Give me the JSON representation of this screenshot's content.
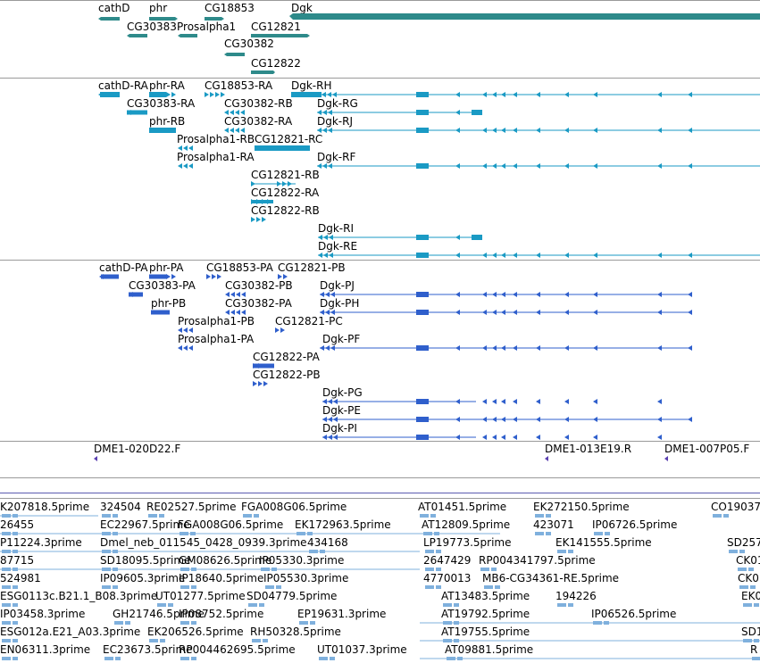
{
  "colors": {
    "gene": "#2e8a8a",
    "transcript": "#1a9ac4",
    "protein": "#2f5fcc",
    "clone": "#5a3fb0",
    "est": "#7fb0dd"
  },
  "tracks": {
    "genes": [
      {
        "id": "cathD",
        "label": "cathD"
      },
      {
        "id": "phr",
        "label": "phr"
      },
      {
        "id": "CG18853",
        "label": "CG18853"
      },
      {
        "id": "Dgk",
        "label": "Dgk"
      },
      {
        "id": "CG30383",
        "label": "CG30383"
      },
      {
        "id": "Prosalpha1",
        "label": "Prosalpha1"
      },
      {
        "id": "CG12821",
        "label": "CG12821"
      },
      {
        "id": "CG30382",
        "label": "CG30382"
      },
      {
        "id": "CG12822",
        "label": "CG12822"
      }
    ],
    "transcripts": [
      {
        "label": "cathD-RA"
      },
      {
        "label": "phr-RA"
      },
      {
        "label": "CG18853-RA"
      },
      {
        "label": "Dgk-RH"
      },
      {
        "label": "CG30383-RA"
      },
      {
        "label": "CG30382-RB"
      },
      {
        "label": "Dgk-RG"
      },
      {
        "label": "phr-RB"
      },
      {
        "label": "CG30382-RA"
      },
      {
        "label": "Dgk-RJ"
      },
      {
        "label": "Prosalpha1-RB"
      },
      {
        "label": "CG12821-RC"
      },
      {
        "label": "Prosalpha1-RA"
      },
      {
        "label": "Dgk-RF"
      },
      {
        "label": "CG12821-RB"
      },
      {
        "label": "CG12822-RA"
      },
      {
        "label": "CG12822-RB"
      },
      {
        "label": "Dgk-RI"
      },
      {
        "label": "Dgk-RE"
      }
    ],
    "proteins": [
      {
        "label": "cathD-PA"
      },
      {
        "label": "phr-PA"
      },
      {
        "label": "CG18853-PA"
      },
      {
        "label": "CG12821-PB"
      },
      {
        "label": "CG30383-PA"
      },
      {
        "label": "CG30382-PB"
      },
      {
        "label": "Dgk-PJ"
      },
      {
        "label": "phr-PB"
      },
      {
        "label": "CG30382-PA"
      },
      {
        "label": "Dgk-PH"
      },
      {
        "label": "Prosalpha1-PB"
      },
      {
        "label": "CG12821-PC"
      },
      {
        "label": "Prosalpha1-PA"
      },
      {
        "label": "Dgk-PF"
      },
      {
        "label": "CG12822-PA"
      },
      {
        "label": "CG12822-PB"
      },
      {
        "label": "Dgk-PG"
      },
      {
        "label": "Dgk-PE"
      },
      {
        "label": "Dgk-PI"
      }
    ],
    "clones": [
      {
        "label": "DME1-020D22.F"
      },
      {
        "label": "DME1-013E19.R"
      },
      {
        "label": "DME1-007P05.F"
      }
    ],
    "ests": [
      "K207818.5prime",
      "324504",
      "RE02527.5prime",
      "FGA008G06.5prime",
      "AT01451.5prime",
      "EK272150.5prime",
      "CO19037",
      "26455",
      "EC22967.5prime",
      "FGA008G06.5prime",
      "EK172963.5prime",
      "AT12809.5prime",
      "423071",
      "IP06726.5prime",
      "P11224.3prime",
      "Dmel_neb_011545_0428_0939.3prime",
      "434168",
      "LP19773.5prime",
      "EK141555.5prime",
      "SD257",
      "87715",
      "SD18095.5prime",
      "GM08626.5prime",
      "IP05330.3prime",
      "2647429",
      "RP004341797.5prime",
      "CK01",
      "524981",
      "IP09605.3prime",
      "IP18640.5prime",
      "IP05530.3prime",
      "4770013",
      "MB6-CG34361-RE.5prime",
      "CK0",
      "ESG0113c.B21.1_B08.3prime",
      "UT01277.5prime",
      "SD04779.5prime",
      "AT13483.5prime",
      "194226",
      "EK0",
      "IP03458.3prime",
      "GH21746.5prime",
      "IP08752.5prime",
      "EP19631.3prime",
      "AT19792.5prime",
      "IP06526.5prime",
      "ESG012a.E21_A03.3prime",
      "EK206526.5prime",
      "RH50328.5prime",
      "AT19755.5prime",
      "SD1",
      "EN06311.3prime",
      "EC23673.5prime",
      "RP004462695.5prime",
      "UT01037.3prime",
      "AT09881.5prime",
      "R"
    ]
  }
}
